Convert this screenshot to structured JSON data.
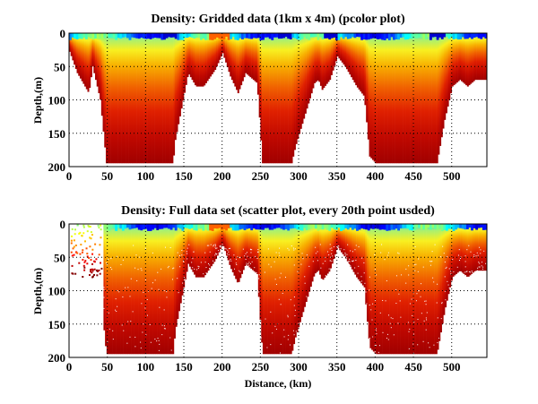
{
  "chart_data": [
    {
      "type": "heatmap",
      "title": "Density: Gridded data (1km x 4m) (pcolor plot)",
      "xlabel": "",
      "ylabel": "Depth,(m)",
      "xlim": [
        0,
        546
      ],
      "ylim": [
        200,
        0
      ],
      "xticks": [
        0,
        50,
        100,
        150,
        200,
        250,
        300,
        350,
        400,
        450,
        500
      ],
      "yticks": [
        0,
        50,
        100,
        150,
        200
      ],
      "grid": "dotted",
      "colormap": "jet",
      "bottom_depth_profile": {
        "distance_km": [
          0,
          10,
          20,
          25,
          30,
          40,
          48,
          50,
          135,
          138,
          155,
          165,
          175,
          190,
          200,
          210,
          220,
          230,
          245,
          252,
          290,
          295,
          320,
          325,
          330,
          340,
          350,
          360,
          375,
          385,
          392,
          400,
          480,
          490,
          500,
          510,
          520,
          530,
          546
        ],
        "depth_m": [
          28,
          60,
          80,
          90,
          50,
          100,
          195,
          195,
          195,
          160,
          60,
          80,
          80,
          55,
          30,
          65,
          90,
          60,
          75,
          195,
          195,
          170,
          75,
          70,
          85,
          70,
          35,
          50,
          80,
          95,
          185,
          195,
          195,
          130,
          80,
          70,
          80,
          70,
          70
        ]
      },
      "surface_minimum_km": [
        130,
        190,
        280,
        340,
        480
      ]
    },
    {
      "type": "scatter",
      "title": "Density: Full data set (scatter plot, every 20th point usded)",
      "xlabel": "Distance, (km)",
      "ylabel": "Depth,(m)",
      "xlim": [
        0,
        546
      ],
      "ylim": [
        200,
        0
      ],
      "xticks": [
        0,
        50,
        100,
        150,
        200,
        250,
        300,
        350,
        400,
        450,
        500
      ],
      "yticks": [
        0,
        50,
        100,
        150,
        200
      ],
      "grid": "dotted",
      "colormap": "jet",
      "sparse_region_km": [
        0,
        45
      ]
    }
  ]
}
